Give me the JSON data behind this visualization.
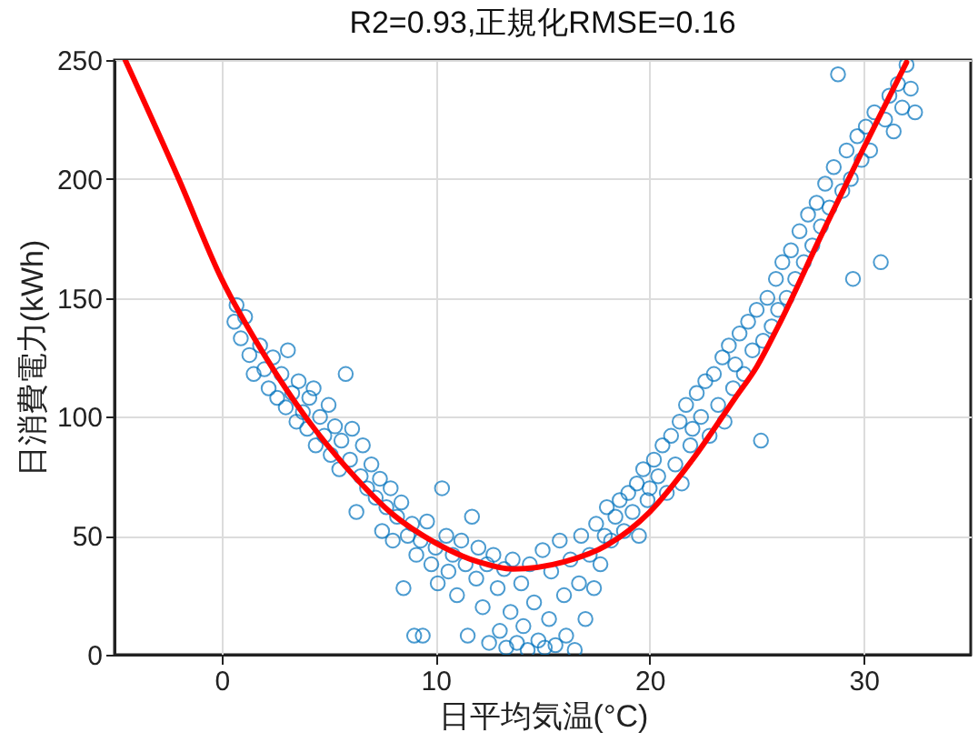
{
  "chart_data": {
    "type": "scatter",
    "title": "R2=0.93,正規化RMSE=0.16",
    "xlabel": "日平均気温(°C)",
    "ylabel": "日消費電力(kWh)",
    "xlim": [
      -5,
      35
    ],
    "xticks": [
      0,
      10,
      20,
      30
    ],
    "ylim": [
      0,
      250
    ],
    "yticks": [
      0,
      50,
      100,
      150,
      200,
      250
    ],
    "grid": true,
    "series": [
      {
        "marker": "circle",
        "color": "#0072bd",
        "x": [
          0.6,
          0.7,
          0.9,
          1.1,
          1.3,
          1.5,
          1.8,
          2.0,
          2.2,
          2.4,
          2.6,
          2.8,
          3.0,
          3.1,
          3.3,
          3.5,
          3.6,
          3.8,
          4.0,
          4.1,
          4.3,
          4.4,
          4.6,
          4.8,
          5.0,
          5.1,
          5.3,
          5.5,
          5.6,
          5.8,
          6.0,
          6.1,
          6.3,
          6.5,
          6.6,
          6.8,
          7.0,
          7.2,
          7.4,
          7.5,
          7.7,
          7.9,
          8.0,
          8.2,
          8.4,
          8.5,
          8.7,
          8.9,
          9.0,
          9.1,
          9.3,
          9.4,
          9.6,
          9.8,
          10.0,
          10.1,
          10.3,
          10.5,
          10.6,
          10.8,
          11.0,
          11.2,
          11.4,
          11.5,
          11.7,
          11.9,
          12.0,
          12.2,
          12.4,
          12.5,
          12.7,
          12.9,
          13.0,
          13.2,
          13.3,
          13.5,
          13.6,
          13.8,
          14.0,
          14.1,
          14.3,
          14.4,
          14.6,
          14.8,
          15.0,
          15.1,
          15.3,
          15.4,
          15.6,
          15.8,
          16.0,
          16.1,
          16.3,
          16.5,
          16.7,
          16.8,
          17.0,
          17.2,
          17.4,
          17.5,
          17.7,
          17.9,
          18.0,
          18.2,
          18.4,
          18.6,
          18.8,
          19.0,
          19.2,
          19.4,
          19.5,
          19.7,
          19.9,
          20.0,
          20.2,
          20.4,
          20.6,
          20.8,
          21.0,
          21.2,
          21.4,
          21.5,
          21.7,
          21.9,
          22.0,
          22.2,
          22.4,
          22.6,
          22.8,
          23.0,
          23.2,
          23.4,
          23.5,
          23.7,
          23.9,
          24.0,
          24.2,
          24.4,
          24.6,
          24.8,
          25.0,
          25.2,
          25.3,
          25.5,
          25.7,
          25.9,
          26.0,
          26.2,
          26.4,
          26.6,
          26.8,
          27.0,
          27.2,
          27.4,
          27.6,
          27.8,
          28.0,
          28.2,
          28.4,
          28.6,
          28.8,
          29.0,
          29.2,
          29.4,
          29.5,
          29.7,
          29.9,
          30.1,
          30.3,
          30.5,
          30.8,
          31.0,
          31.2,
          31.4,
          31.6,
          31.8,
          32.0,
          32.2,
          32.4
        ],
        "values": [
          140,
          147,
          133,
          142,
          126,
          118,
          130,
          120,
          112,
          125,
          108,
          118,
          104,
          128,
          110,
          98,
          115,
          102,
          95,
          108,
          112,
          88,
          100,
          92,
          105,
          84,
          96,
          78,
          90,
          118,
          82,
          95,
          60,
          75,
          88,
          70,
          80,
          66,
          74,
          52,
          62,
          70,
          48,
          58,
          64,
          28,
          50,
          55,
          8,
          42,
          48,
          8,
          56,
          38,
          45,
          30,
          70,
          50,
          35,
          42,
          25,
          48,
          38,
          8,
          58,
          32,
          45,
          20,
          38,
          5,
          42,
          28,
          10,
          36,
          3,
          18,
          40,
          5,
          30,
          12,
          2,
          38,
          22,
          6,
          44,
          3,
          15,
          35,
          4,
          48,
          25,
          8,
          40,
          2,
          30,
          50,
          15,
          42,
          28,
          55,
          38,
          50,
          62,
          48,
          58,
          65,
          52,
          68,
          60,
          72,
          50,
          78,
          65,
          70,
          82,
          75,
          88,
          68,
          92,
          80,
          98,
          72,
          105,
          88,
          95,
          110,
          100,
          115,
          92,
          118,
          105,
          125,
          98,
          130,
          112,
          122,
          135,
          118,
          140,
          128,
          145,
          90,
          132,
          150,
          138,
          158,
          145,
          165,
          150,
          170,
          158,
          178,
          165,
          185,
          172,
          190,
          180,
          198,
          188,
          205,
          244,
          195,
          212,
          200,
          158,
          218,
          208,
          222,
          212,
          228,
          165,
          225,
          235,
          220,
          240,
          230,
          248,
          238,
          228
        ]
      },
      {
        "type": "line",
        "color": "#ff0000",
        "line_style": "solid",
        "marker": "none",
        "x": [
          -4.5,
          -2,
          0,
          2,
          4,
          6,
          8,
          10,
          12,
          13.6,
          16,
          18,
          20,
          22,
          24,
          25,
          26,
          28,
          30,
          32
        ],
        "values": [
          250,
          200,
          158,
          126,
          99,
          77,
          59,
          47,
          39,
          36,
          39,
          46,
          60,
          82,
          108,
          121,
          138,
          176,
          213,
          249
        ]
      }
    ]
  }
}
